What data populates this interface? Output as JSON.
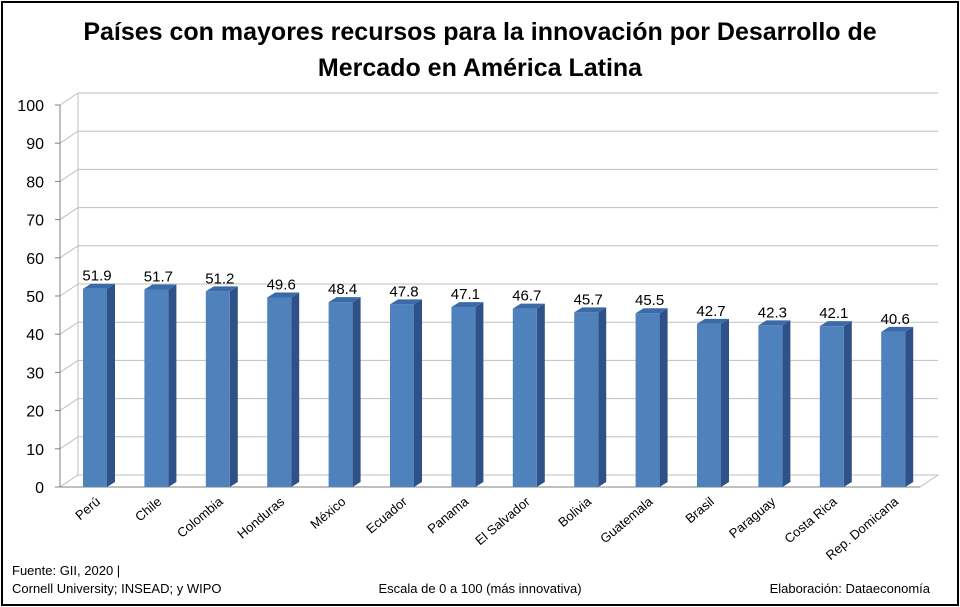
{
  "title": "Países con mayores recursos para la innovación por Desarrollo de\nMercado en América Latina",
  "footer": {
    "source_line1": "Fuente:  GII, 2020 |",
    "source_line2": "Cornell University; INSEAD; y WIPO",
    "scale_note": "Escala de 0 a 100 (más innovativa)",
    "credit": "Elaboración: Dataeconomía"
  },
  "colors": {
    "bar_front": "#4F81BD",
    "bar_side": "#2E5287",
    "bar_top": "#3A6AA8",
    "grid": "#BFBFBF"
  },
  "chart_data": {
    "type": "bar",
    "title": "Países con mayores recursos para la innovación por Desarrollo de Mercado en América Latina",
    "xlabel": "",
    "ylabel": "",
    "ylim": [
      0,
      100
    ],
    "yticks": [
      0,
      10,
      20,
      30,
      40,
      50,
      60,
      70,
      80,
      90,
      100
    ],
    "grid": true,
    "categories": [
      "Perú",
      "Chile",
      "Colombia",
      "Honduras",
      "México",
      "Ecuador",
      "Panama",
      "El Salvador",
      "Bolivia",
      "Guatemala",
      "Brasil",
      "Paraguay",
      "Costa Rica",
      "Rep. Domicana"
    ],
    "values": [
      51.9,
      51.7,
      51.2,
      49.6,
      48.4,
      47.8,
      47.1,
      46.7,
      45.7,
      45.5,
      42.7,
      42.3,
      42.1,
      40.6
    ]
  }
}
